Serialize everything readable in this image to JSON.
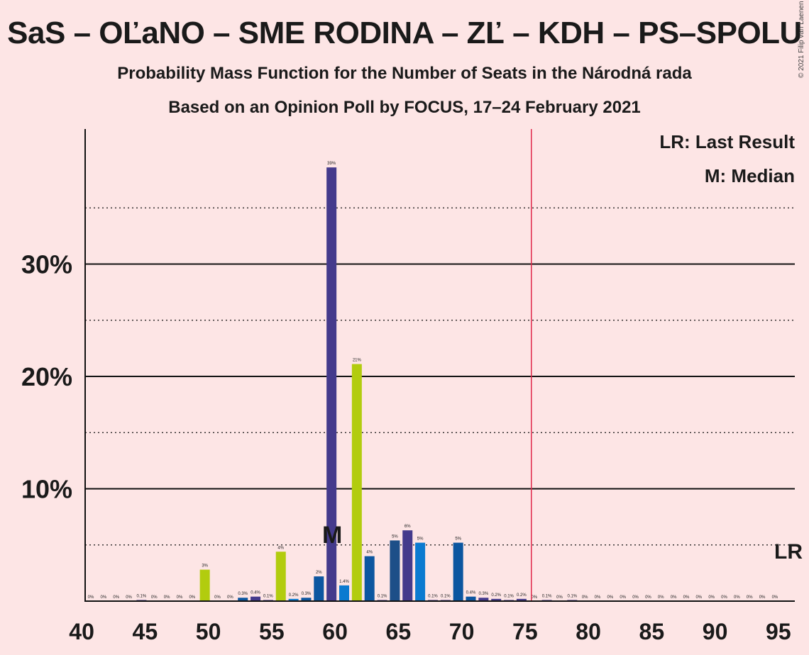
{
  "title": "SaS – OĽaNO – SME RODINA – ZĽ – KDH – PS–SPOLU",
  "subtitle1": "Probability Mass Function for the Number of Seats in the Národná rada",
  "subtitle2": "Based on an Opinion Poll by FOCUS, 17–24 February 2021",
  "copyright": "© 2021 Filip van Laenen",
  "legend": {
    "lr": "LR: Last Result",
    "m": "M: Median"
  },
  "markers": {
    "median_label": "M",
    "median_seat": 60,
    "lr_label": "LR",
    "majority_seat": 76
  },
  "colors": {
    "background": "#fde5e5",
    "majority_line": "#e0284a",
    "palette": [
      "#443a8c",
      "#0c56a0",
      "#0a7ad0",
      "#b2cc0e",
      "#1d4f88"
    ]
  },
  "chart_data": {
    "type": "bar",
    "title": "SaS – OĽaNO – SME RODINA – ZĽ – KDH – PS–SPOLU",
    "xlabel": "",
    "ylabel": "",
    "xlim": [
      40,
      95
    ],
    "ylim": [
      0,
      42
    ],
    "x_ticks": [
      40,
      45,
      50,
      55,
      60,
      65,
      70,
      75,
      80,
      85,
      90,
      95
    ],
    "y_ticks": [
      {
        "value": 10,
        "label": "10%"
      },
      {
        "value": 20,
        "label": "20%"
      },
      {
        "value": 30,
        "label": "30%"
      }
    ],
    "y_dotted_lines": [
      5,
      15,
      25,
      35
    ],
    "grid": true,
    "legend_position": "top-right",
    "bars": [
      {
        "x": 41,
        "value": 0,
        "label": "0%",
        "color": 0
      },
      {
        "x": 42,
        "value": 0,
        "label": "0%",
        "color": 0
      },
      {
        "x": 43,
        "value": 0,
        "label": "0%",
        "color": 0
      },
      {
        "x": 44,
        "value": 0,
        "label": "0%",
        "color": 0
      },
      {
        "x": 45,
        "value": 0.1,
        "label": "0.1%",
        "color": 0
      },
      {
        "x": 46,
        "value": 0,
        "label": "0%",
        "color": 0
      },
      {
        "x": 47,
        "value": 0,
        "label": "0%",
        "color": 0
      },
      {
        "x": 48,
        "value": 0,
        "label": "0%",
        "color": 0
      },
      {
        "x": 49,
        "value": 0,
        "label": "0%",
        "color": 0
      },
      {
        "x": 50,
        "value": 2.8,
        "label": "3%",
        "color": 3
      },
      {
        "x": 51,
        "value": 0,
        "label": "0%",
        "color": 0
      },
      {
        "x": 52,
        "value": 0,
        "label": "0%",
        "color": 0
      },
      {
        "x": 53,
        "value": 0.3,
        "label": "0.3%",
        "color": 1
      },
      {
        "x": 54,
        "value": 0.4,
        "label": "0.4%",
        "color": 0
      },
      {
        "x": 55,
        "value": 0.1,
        "label": "0.1%",
        "color": 0
      },
      {
        "x": 56,
        "value": 4.4,
        "label": "4%",
        "color": 3
      },
      {
        "x": 57,
        "value": 0.2,
        "label": "0.2%",
        "color": 2
      },
      {
        "x": 58,
        "value": 0.3,
        "label": "0.3%",
        "color": 1
      },
      {
        "x": 59,
        "value": 2.2,
        "label": "2%",
        "color": 1
      },
      {
        "x": 60,
        "value": 38.6,
        "label": "39%",
        "color": 0
      },
      {
        "x": 61,
        "value": 1.4,
        "label": "1.4%",
        "color": 2
      },
      {
        "x": 62,
        "value": 21.1,
        "label": "21%",
        "color": 3
      },
      {
        "x": 63,
        "value": 4,
        "label": "4%",
        "color": 1
      },
      {
        "x": 64,
        "value": 0.1,
        "label": "0.1%",
        "color": 0
      },
      {
        "x": 65,
        "value": 5.4,
        "label": "5%",
        "color": 4
      },
      {
        "x": 66,
        "value": 6.3,
        "label": "6%",
        "color": 0
      },
      {
        "x": 67,
        "value": 5.2,
        "label": "5%",
        "color": 2
      },
      {
        "x": 68,
        "value": 0.1,
        "label": "0.1%",
        "color": 0
      },
      {
        "x": 69,
        "value": 0.1,
        "label": "0.1%",
        "color": 0
      },
      {
        "x": 70,
        "value": 5.2,
        "label": "5%",
        "color": 1
      },
      {
        "x": 71,
        "value": 0.4,
        "label": "0.4%",
        "color": 1
      },
      {
        "x": 72,
        "value": 0.3,
        "label": "0.3%",
        "color": 0
      },
      {
        "x": 73,
        "value": 0.2,
        "label": "0.2%",
        "color": 0
      },
      {
        "x": 74,
        "value": 0.1,
        "label": "0.1%",
        "color": 0
      },
      {
        "x": 75,
        "value": 0.2,
        "label": "0.2%",
        "color": 0
      },
      {
        "x": 76,
        "value": 0,
        "label": "0%",
        "color": 0
      },
      {
        "x": 77,
        "value": 0.1,
        "label": "0.1%",
        "color": 0
      },
      {
        "x": 78,
        "value": 0,
        "label": "0%",
        "color": 0
      },
      {
        "x": 79,
        "value": 0.1,
        "label": "0.1%",
        "color": 0
      },
      {
        "x": 80,
        "value": 0,
        "label": "0%",
        "color": 0
      },
      {
        "x": 81,
        "value": 0,
        "label": "0%",
        "color": 0
      },
      {
        "x": 82,
        "value": 0,
        "label": "0%",
        "color": 0
      },
      {
        "x": 83,
        "value": 0,
        "label": "0%",
        "color": 0
      },
      {
        "x": 84,
        "value": 0,
        "label": "0%",
        "color": 0
      },
      {
        "x": 85,
        "value": 0,
        "label": "0%",
        "color": 0
      },
      {
        "x": 86,
        "value": 0,
        "label": "0%",
        "color": 0
      },
      {
        "x": 87,
        "value": 0,
        "label": "0%",
        "color": 0
      },
      {
        "x": 88,
        "value": 0,
        "label": "0%",
        "color": 0
      },
      {
        "x": 89,
        "value": 0,
        "label": "0%",
        "color": 0
      },
      {
        "x": 90,
        "value": 0,
        "label": "0%",
        "color": 0
      },
      {
        "x": 91,
        "value": 0,
        "label": "0%",
        "color": 0
      },
      {
        "x": 92,
        "value": 0,
        "label": "0%",
        "color": 0
      },
      {
        "x": 93,
        "value": 0,
        "label": "0%",
        "color": 0
      },
      {
        "x": 94,
        "value": 0,
        "label": "0%",
        "color": 0
      },
      {
        "x": 95,
        "value": 0,
        "label": "0%",
        "color": 0
      }
    ]
  }
}
